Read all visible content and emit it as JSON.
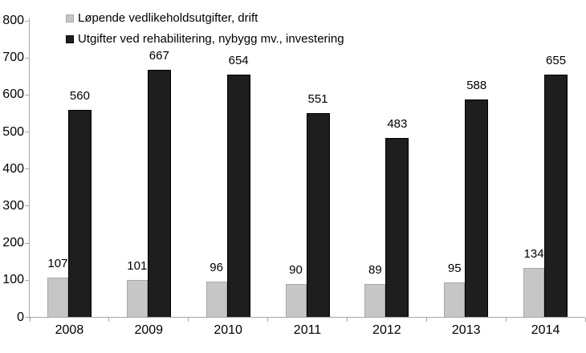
{
  "chart_data": {
    "type": "bar",
    "title": "",
    "categories": [
      "2008",
      "2009",
      "2010",
      "2011",
      "2012",
      "2013",
      "2014"
    ],
    "series": [
      {
        "name": "Løpende vedlikeholdsutgifter, drift",
        "values": [
          107,
          101,
          96,
          90,
          89,
          95,
          134
        ],
        "color": "#c6c6c6",
        "border_color": "#a8a8a8"
      },
      {
        "name": "Utgifter ved rehabilitering, nybygg mv., investering",
        "values": [
          560,
          667,
          654,
          551,
          483,
          588,
          655
        ],
        "color": "#1e1e1e",
        "border_color": "#000000"
      }
    ],
    "ylim": [
      0,
      800
    ],
    "y_ticks": [
      0,
      100,
      200,
      300,
      400,
      500,
      600,
      700,
      800
    ],
    "grid": false,
    "legend_position": "top-left",
    "axis_color": "#a6a6a6",
    "text_color": "#000000",
    "background_color": "#ffffff"
  }
}
